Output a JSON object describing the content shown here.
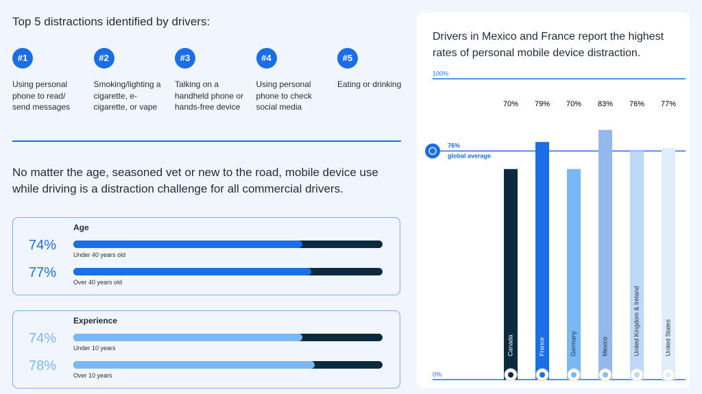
{
  "distractions": {
    "title": "Top 5 distractions identified by drivers:",
    "items": [
      {
        "rank": "#1",
        "label": "Using personal phone to read/ send messages"
      },
      {
        "rank": "#2",
        "label": "Smoking/lighting a cigarette, e-cigarette, or vape"
      },
      {
        "rank": "#3",
        "label": "Talking on a handheld phone or hands-free device"
      },
      {
        "rank": "#4",
        "label": "Using personal phone to check social media"
      },
      {
        "rank": "#5",
        "label": "Eating or drinking"
      }
    ]
  },
  "statement": "No matter the age, seasoned vet or new to the road, mobile device use while driving is a distraction challenge for all commercial drivers.",
  "groups": [
    {
      "title": "Age",
      "color": "#1a6ee8",
      "xlim": [
        0,
        100
      ],
      "rows": [
        {
          "value": 74,
          "value_label": "74%",
          "label": "Under 40 years old"
        },
        {
          "value": 77,
          "value_label": "77%",
          "label": "Over 40 years old"
        }
      ]
    },
    {
      "title": "Experience",
      "color": "#7ab8f5",
      "xlim": [
        0,
        100
      ],
      "rows": [
        {
          "value": 74,
          "value_label": "74%",
          "label": "Under 10 years"
        },
        {
          "value": 78,
          "value_label": "78%",
          "label": "Over 10 years"
        }
      ]
    }
  ],
  "chart_data": {
    "type": "bar",
    "title": "Drivers in Mexico and France report the highest rates of personal mobile device distraction.",
    "categories": [
      "Canada",
      "France",
      "Germany",
      "Mexico",
      "United Kingdom & Ireland",
      "United States"
    ],
    "values": [
      70,
      79,
      70,
      83,
      76,
      77
    ],
    "value_labels": [
      "70%",
      "79%",
      "70%",
      "83%",
      "76%",
      "77%"
    ],
    "colors": [
      "#0b2a40",
      "#1a6ee8",
      "#7ab8f5",
      "#94b8ec",
      "#c0d8f8",
      "#e2edfc"
    ],
    "ylim": [
      0,
      100
    ],
    "yticks": [
      {
        "value": 0,
        "label": "0%"
      },
      {
        "value": 100,
        "label": "100%"
      }
    ],
    "reference": {
      "value": 76,
      "label": "76%",
      "text": "global average"
    }
  }
}
